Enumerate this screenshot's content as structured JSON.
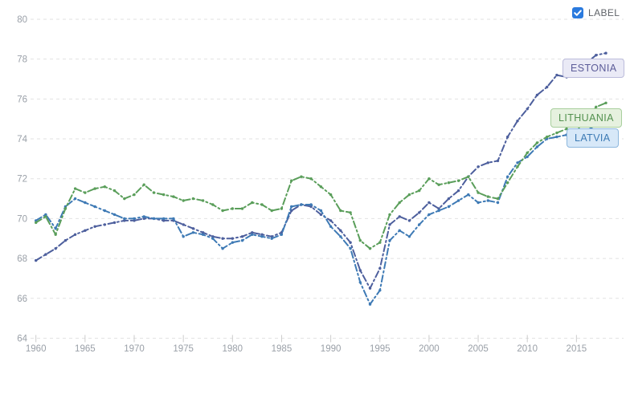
{
  "legend": {
    "label": "LABEL",
    "checked": true
  },
  "colors": {
    "background": "#ffffff",
    "grid": "#e2e2e2",
    "axis_text": "#9aa0a8",
    "tick_mark": "#cccccc",
    "checkbox_blue": "#2a7ade",
    "legend_text": "#5f6368"
  },
  "chart_data": {
    "type": "line",
    "title": "",
    "xlabel": "",
    "ylabel": "",
    "ylim": [
      64,
      80
    ],
    "yticks": [
      64,
      66,
      68,
      70,
      72,
      74,
      76,
      78,
      80
    ],
    "xticks": [
      1960,
      1965,
      1970,
      1975,
      1980,
      1985,
      1990,
      1995,
      2000,
      2005,
      2010,
      2015
    ],
    "grid": "horizontal-dashed",
    "legend_position": "top-right-checkbox",
    "line_style": "dash-dot-with-point-markers",
    "x": [
      1960,
      1961,
      1962,
      1963,
      1964,
      1965,
      1966,
      1967,
      1968,
      1969,
      1970,
      1971,
      1972,
      1973,
      1974,
      1975,
      1976,
      1977,
      1978,
      1979,
      1980,
      1981,
      1982,
      1983,
      1984,
      1985,
      1986,
      1987,
      1988,
      1989,
      1990,
      1991,
      1992,
      1993,
      1994,
      1995,
      1996,
      1997,
      1998,
      1999,
      2000,
      2001,
      2002,
      2003,
      2004,
      2005,
      2006,
      2007,
      2008,
      2009,
      2010,
      2011,
      2012,
      2013,
      2014,
      2015,
      2016,
      2017,
      2018
    ],
    "series": [
      {
        "name": "Estonia",
        "badge": "ESTONIA",
        "color": "#4d5f9d",
        "badge_bg": "#eaeaf6",
        "badge_border": "#bcbcdb",
        "badge_text_color": "#5d5d99",
        "values": [
          67.9,
          68.2,
          68.5,
          68.9,
          69.2,
          69.4,
          69.6,
          69.7,
          69.8,
          69.9,
          69.9,
          70.0,
          70.0,
          69.9,
          69.9,
          69.7,
          69.5,
          69.3,
          69.1,
          69.0,
          69.0,
          69.1,
          69.3,
          69.2,
          69.1,
          69.3,
          70.4,
          70.7,
          70.6,
          70.2,
          69.9,
          69.4,
          68.8,
          67.4,
          66.5,
          67.5,
          69.7,
          70.1,
          69.9,
          70.3,
          70.8,
          70.5,
          71.0,
          71.4,
          72.1,
          72.6,
          72.8,
          72.9,
          74.1,
          74.9,
          75.5,
          76.2,
          76.6,
          77.2,
          77.1,
          77.5,
          77.8,
          78.2,
          78.3
        ]
      },
      {
        "name": "Latvia",
        "badge": "LATVIA",
        "color": "#3e7ab5",
        "badge_bg": "#d7e8f8",
        "badge_border": "#8db7dd",
        "badge_text_color": "#3c7ab4",
        "values": [
          69.9,
          70.2,
          69.5,
          70.6,
          71.0,
          70.8,
          70.6,
          70.4,
          70.2,
          70.0,
          70.0,
          70.1,
          70.0,
          70.0,
          70.0,
          69.1,
          69.3,
          69.2,
          69.0,
          68.5,
          68.8,
          68.9,
          69.2,
          69.1,
          69.0,
          69.2,
          70.6,
          70.7,
          70.7,
          70.4,
          69.6,
          69.1,
          68.5,
          66.8,
          65.7,
          66.4,
          68.9,
          69.4,
          69.1,
          69.7,
          70.2,
          70.4,
          70.6,
          70.9,
          71.2,
          70.8,
          70.9,
          70.8,
          72.1,
          72.8,
          73.1,
          73.6,
          74.0,
          74.1,
          74.2,
          74.4,
          74.4,
          74.7,
          74.8
        ]
      },
      {
        "name": "Lithuania",
        "badge": "LITHUANIA",
        "color": "#5a9e5a",
        "badge_bg": "#e6f1df",
        "badge_border": "#a8cf9d",
        "badge_text_color": "#53914f",
        "values": [
          69.8,
          70.1,
          69.2,
          70.5,
          71.5,
          71.3,
          71.5,
          71.6,
          71.4,
          71.0,
          71.2,
          71.7,
          71.3,
          71.2,
          71.1,
          70.9,
          71.0,
          70.9,
          70.7,
          70.4,
          70.5,
          70.5,
          70.8,
          70.7,
          70.4,
          70.5,
          71.9,
          72.1,
          72.0,
          71.6,
          71.2,
          70.4,
          70.3,
          68.9,
          68.5,
          68.8,
          70.2,
          70.8,
          71.2,
          71.4,
          72.0,
          71.7,
          71.8,
          71.9,
          72.1,
          71.3,
          71.1,
          71.0,
          71.8,
          72.6,
          73.3,
          73.8,
          74.1,
          74.3,
          74.5,
          74.4,
          74.9,
          75.6,
          75.8
        ]
      }
    ]
  }
}
